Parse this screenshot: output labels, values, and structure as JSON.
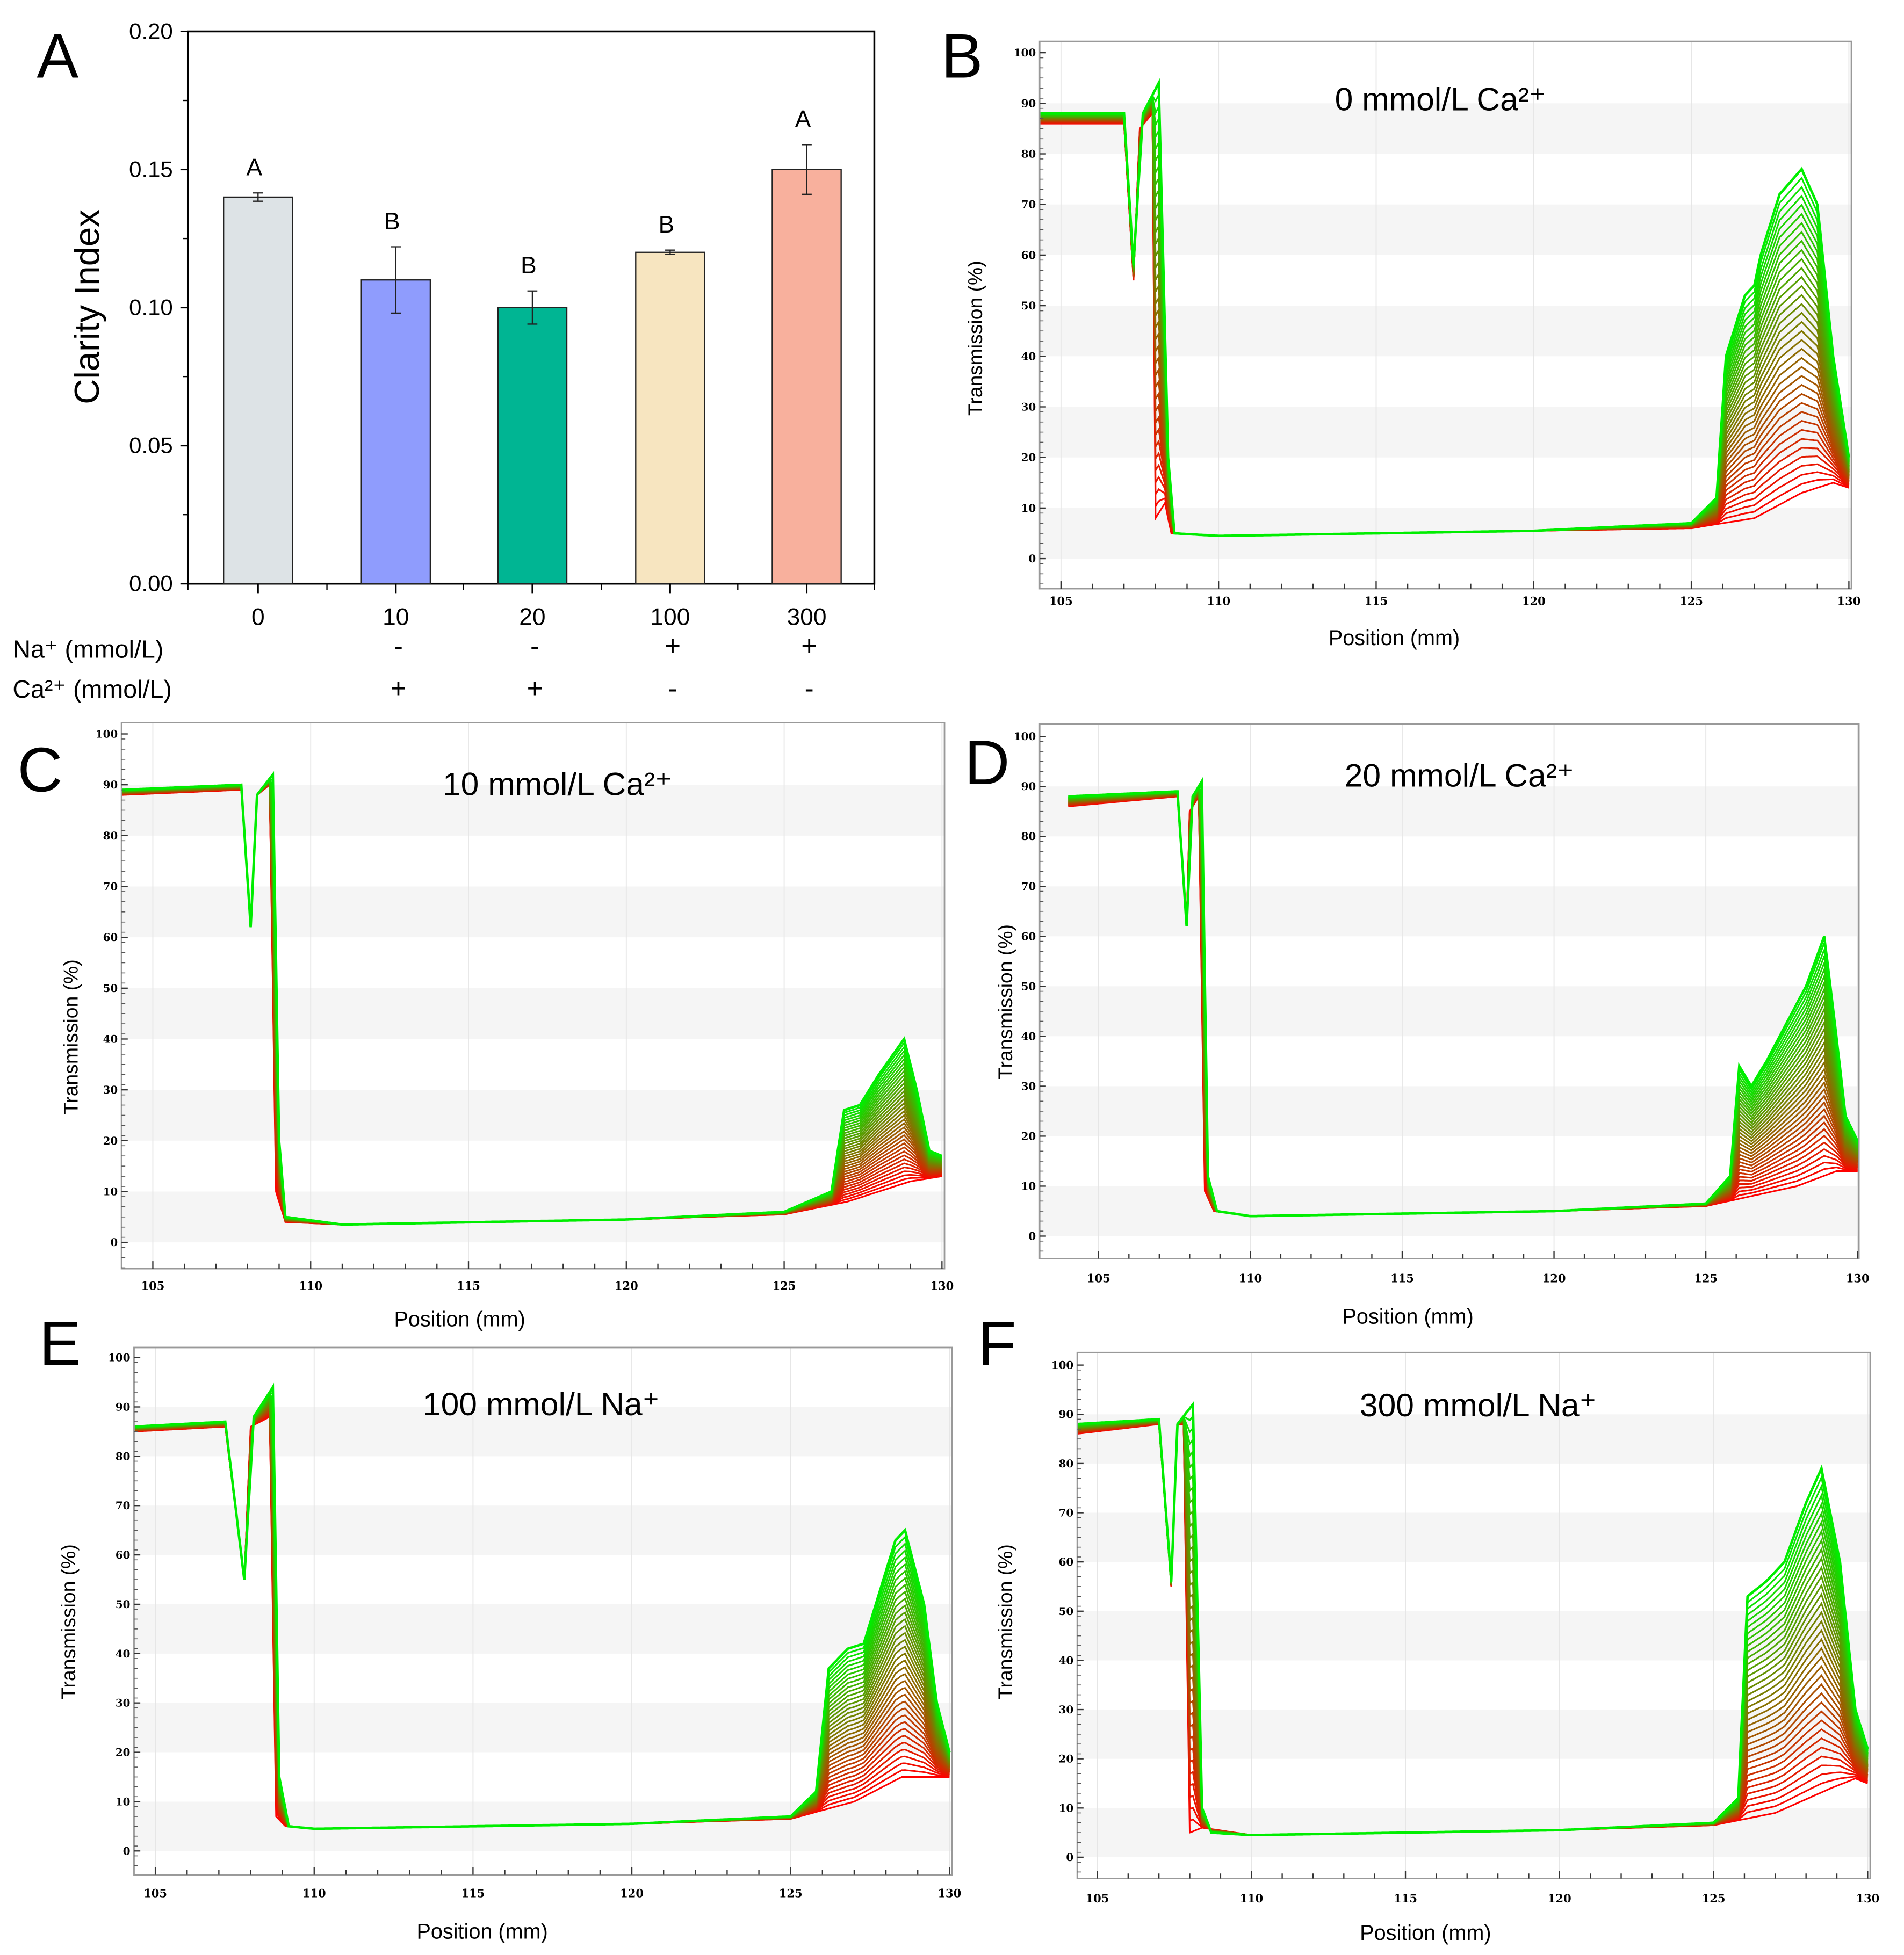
{
  "panel_labels": [
    "A",
    "B",
    "C",
    "D",
    "E",
    "F"
  ],
  "chart_data": [
    {
      "panel": "A",
      "type": "bar",
      "categories": [
        "0",
        "10",
        "20",
        "100",
        "300"
      ],
      "values": [
        0.14,
        0.11,
        0.1,
        0.12,
        0.15
      ],
      "errors": [
        0.0015,
        0.012,
        0.006,
        0.0008,
        0.009
      ],
      "letters": [
        "A",
        "B",
        "B",
        "B",
        "A"
      ],
      "colors": [
        "#dde3e6",
        "#8f9cfd",
        "#00b593",
        "#f7e5c0",
        "#f8b09d"
      ],
      "ylabel": "Clarity Index",
      "xlabel": "",
      "ylim": [
        0,
        0.2
      ],
      "yticks": [
        "0.00",
        "0.05",
        "0.10",
        "0.15",
        "0.20"
      ],
      "rows": [
        {
          "label": "Na⁺ (mmol/L)",
          "values": [
            "",
            "-",
            "-",
            "+",
            "+"
          ]
        },
        {
          "label": "Ca²⁺ (mmol/L)",
          "values": [
            "",
            "+",
            "+",
            "-",
            "-"
          ]
        }
      ]
    },
    {
      "panel": "B",
      "type": "line",
      "title": "0 mmol/L Ca²⁺",
      "xlabel": "Position (mm)",
      "ylabel": "Transmission (%)",
      "xticks": [
        "105",
        "110",
        "115",
        "120",
        "125",
        "130"
      ],
      "yticks": [
        "0",
        "10",
        "20",
        "30",
        "40",
        "50",
        "60",
        "70",
        "80",
        "90",
        "100"
      ],
      "color_start": "#ff0000",
      "color_end": "#00ee00",
      "initial": [
        [
          104.3,
          86
        ],
        [
          107.0,
          86
        ],
        [
          107.3,
          55
        ],
        [
          107.5,
          85
        ],
        [
          107.9,
          88
        ],
        [
          108.0,
          8
        ],
        [
          108.3,
          11
        ],
        [
          108.5,
          5
        ],
        [
          110,
          4.5
        ],
        [
          120,
          5.5
        ],
        [
          125,
          6
        ],
        [
          127,
          8
        ],
        [
          128.5,
          13
        ],
        [
          129.5,
          15
        ],
        [
          130,
          14
        ]
      ],
      "final": [
        [
          104.3,
          88
        ],
        [
          107.0,
          88
        ],
        [
          107.3,
          58
        ],
        [
          107.6,
          88
        ],
        [
          108.1,
          94
        ],
        [
          108.4,
          20
        ],
        [
          108.6,
          5
        ],
        [
          110,
          4.5
        ],
        [
          120,
          5.5
        ],
        [
          125,
          7
        ],
        [
          125.8,
          12
        ],
        [
          126.1,
          40
        ],
        [
          126.7,
          52
        ],
        [
          127.0,
          54
        ],
        [
          127.2,
          60
        ],
        [
          127.8,
          72
        ],
        [
          128.5,
          77
        ],
        [
          129.0,
          70
        ],
        [
          129.5,
          40
        ],
        [
          130,
          20
        ]
      ]
    },
    {
      "panel": "C",
      "type": "line",
      "title": "10 mmol/L Ca²⁺",
      "xlabel": "Position (mm)",
      "ylabel": "Transmission (%)",
      "xticks": [
        "105",
        "110",
        "115",
        "120",
        "125",
        "130"
      ],
      "yticks": [
        "0",
        "10",
        "20",
        "30",
        "40",
        "50",
        "60",
        "70",
        "80",
        "90",
        "100"
      ],
      "color_start": "#ff0000",
      "color_end": "#00ee00",
      "initial": [
        [
          104.0,
          88
        ],
        [
          107.8,
          89
        ],
        [
          108.1,
          62
        ],
        [
          108.3,
          88
        ],
        [
          108.7,
          90
        ],
        [
          108.9,
          10
        ],
        [
          109.2,
          4
        ],
        [
          111,
          3.5
        ],
        [
          120,
          4.5
        ],
        [
          125,
          5.5
        ],
        [
          127,
          8
        ],
        [
          129,
          12
        ],
        [
          130,
          13
        ]
      ],
      "final": [
        [
          104.0,
          89
        ],
        [
          107.8,
          90
        ],
        [
          108.1,
          62
        ],
        [
          108.3,
          88
        ],
        [
          108.8,
          92
        ],
        [
          109.0,
          20
        ],
        [
          109.2,
          5
        ],
        [
          111,
          3.5
        ],
        [
          120,
          4.5
        ],
        [
          125,
          6
        ],
        [
          126.5,
          10
        ],
        [
          126.9,
          26
        ],
        [
          127.4,
          27
        ],
        [
          128,
          33
        ],
        [
          128.8,
          40
        ],
        [
          129.2,
          30
        ],
        [
          129.6,
          18
        ],
        [
          130,
          17
        ]
      ]
    },
    {
      "panel": "D",
      "type": "line",
      "title": "20 mmol/L Ca²⁺",
      "xlabel": "Position (mm)",
      "ylabel": "Transmission (%)",
      "xticks": [
        "105",
        "110",
        "115",
        "120",
        "125",
        "130"
      ],
      "yticks": [
        "0",
        "10",
        "20",
        "30",
        "40",
        "50",
        "60",
        "70",
        "80",
        "90",
        "100"
      ],
      "color_start": "#ff0000",
      "color_end": "#00ee00",
      "initial": [
        [
          104.0,
          86
        ],
        [
          107.6,
          88
        ],
        [
          107.9,
          62
        ],
        [
          108.0,
          85
        ],
        [
          108.3,
          88
        ],
        [
          108.5,
          9
        ],
        [
          108.8,
          5
        ],
        [
          110,
          4
        ],
        [
          120,
          5
        ],
        [
          125,
          6
        ],
        [
          128,
          10
        ],
        [
          129.3,
          13
        ],
        [
          130,
          13
        ]
      ],
      "final": [
        [
          104.0,
          88
        ],
        [
          107.6,
          89
        ],
        [
          107.9,
          62
        ],
        [
          108.1,
          88
        ],
        [
          108.4,
          91
        ],
        [
          108.6,
          12
        ],
        [
          108.9,
          5
        ],
        [
          110,
          4
        ],
        [
          120,
          5
        ],
        [
          125,
          6.5
        ],
        [
          125.8,
          12
        ],
        [
          126.1,
          34
        ],
        [
          126.5,
          30
        ],
        [
          127,
          35
        ],
        [
          128.3,
          50
        ],
        [
          128.9,
          60
        ],
        [
          129.3,
          40
        ],
        [
          129.6,
          24
        ],
        [
          130,
          19
        ]
      ]
    },
    {
      "panel": "E",
      "type": "line",
      "title": "100 mmol/L Na⁺",
      "xlabel": "Position (mm)",
      "ylabel": "Transmission (%)",
      "xticks": [
        "105",
        "110",
        "115",
        "120",
        "125",
        "130"
      ],
      "yticks": [
        "0",
        "10",
        "20",
        "30",
        "40",
        "50",
        "60",
        "70",
        "80",
        "90",
        "100"
      ],
      "color_start": "#ff0000",
      "color_end": "#00ee00",
      "initial": [
        [
          104.3,
          85
        ],
        [
          107.2,
          86
        ],
        [
          107.8,
          55
        ],
        [
          108.0,
          86
        ],
        [
          108.6,
          88
        ],
        [
          108.8,
          7
        ],
        [
          109.1,
          5
        ],
        [
          110,
          4.5
        ],
        [
          120,
          5.5
        ],
        [
          125,
          6.5
        ],
        [
          127,
          10
        ],
        [
          128.5,
          15
        ],
        [
          130,
          15
        ]
      ],
      "final": [
        [
          104.3,
          86
        ],
        [
          107.2,
          87
        ],
        [
          107.8,
          55
        ],
        [
          108.1,
          88
        ],
        [
          108.7,
          94
        ],
        [
          108.9,
          15
        ],
        [
          109.2,
          5
        ],
        [
          110,
          4.5
        ],
        [
          120,
          5.5
        ],
        [
          125,
          7
        ],
        [
          125.8,
          12
        ],
        [
          126.2,
          37
        ],
        [
          126.8,
          41
        ],
        [
          127.3,
          42
        ],
        [
          128.3,
          63
        ],
        [
          128.6,
          65
        ],
        [
          129.2,
          50
        ],
        [
          129.6,
          30
        ],
        [
          130,
          20
        ]
      ]
    },
    {
      "panel": "F",
      "type": "line",
      "title": "300 mmol/L Na⁺",
      "xlabel": "Position (mm)",
      "ylabel": "Transmission (%)",
      "xticks": [
        "105",
        "110",
        "115",
        "120",
        "125",
        "130"
      ],
      "yticks": [
        "0",
        "10",
        "20",
        "30",
        "40",
        "50",
        "60",
        "70",
        "80",
        "90",
        "100"
      ],
      "color_start": "#ff0000",
      "color_end": "#00ee00",
      "initial": [
        [
          104.3,
          86
        ],
        [
          107.0,
          88
        ],
        [
          107.4,
          55
        ],
        [
          107.6,
          88
        ],
        [
          107.8,
          88
        ],
        [
          108.0,
          5
        ],
        [
          108.4,
          6
        ],
        [
          110,
          4.5
        ],
        [
          120,
          5.5
        ],
        [
          125,
          6.5
        ],
        [
          127,
          9
        ],
        [
          128.8,
          14
        ],
        [
          129.6,
          16
        ],
        [
          130,
          15
        ]
      ],
      "final": [
        [
          104.3,
          88
        ],
        [
          107.0,
          89
        ],
        [
          107.4,
          56
        ],
        [
          107.6,
          88
        ],
        [
          108.1,
          92
        ],
        [
          108.4,
          10
        ],
        [
          108.7,
          5
        ],
        [
          110,
          4.5
        ],
        [
          120,
          5.5
        ],
        [
          125,
          7
        ],
        [
          125.8,
          12
        ],
        [
          126.1,
          53
        ],
        [
          126.7,
          56
        ],
        [
          127.3,
          60
        ],
        [
          128,
          72
        ],
        [
          128.5,
          79
        ],
        [
          129.1,
          60
        ],
        [
          129.6,
          30
        ],
        [
          130,
          22
        ]
      ]
    }
  ]
}
